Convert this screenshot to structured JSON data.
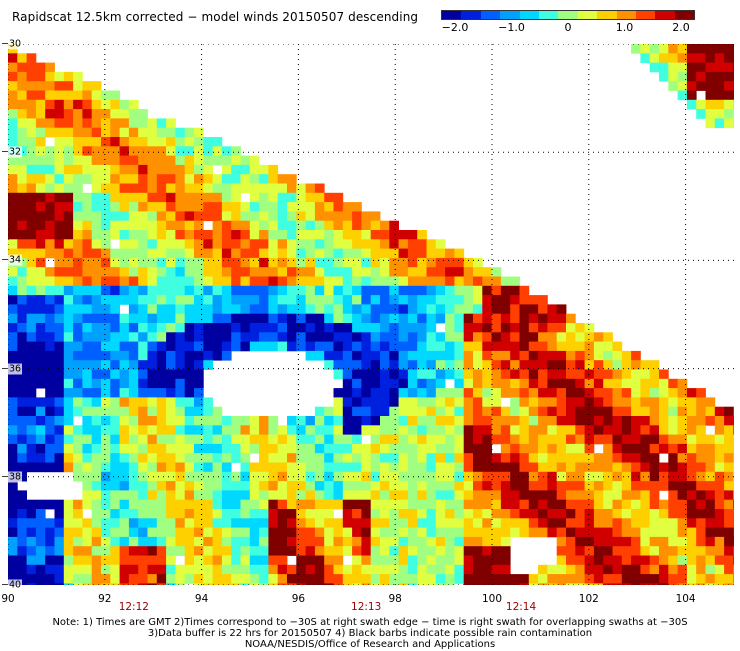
{
  "title": "Rapidscat 12.5km corrected − model winds 20150507 descending",
  "colorbar": {
    "tick_labels": [
      "−2.0",
      "−1.0",
      "0",
      "1.0",
      "2.0"
    ],
    "tick_values": [
      -2.0,
      -1.0,
      0,
      1.0,
      2.0
    ],
    "colors": [
      "#0000a0",
      "#0020e0",
      "#0060ff",
      "#00a0ff",
      "#00d8ff",
      "#40ffe0",
      "#a0ff80",
      "#e0ff40",
      "#ffd000",
      "#ff9000",
      "#ff4000",
      "#d00000",
      "#800000"
    ]
  },
  "map": {
    "lon_range": [
      90,
      105
    ],
    "lat_range": [
      -30,
      -40
    ],
    "lon_labels": [
      "90",
      "92",
      "94",
      "96",
      "98",
      "100",
      "102",
      "104"
    ],
    "lon_values": [
      90,
      92,
      94,
      96,
      98,
      100,
      102,
      104
    ],
    "lat_labels": [
      "−30",
      "−32",
      "−34",
      "−36",
      "−38",
      "−40"
    ],
    "lat_values": [
      -30,
      -32,
      -34,
      -36,
      -38,
      -40
    ],
    "time_labels": [
      {
        "text": "12:12",
        "lon": 92.6
      },
      {
        "text": "12:13",
        "lon": 97.4
      },
      {
        "text": "12:14",
        "lon": 100.6
      }
    ],
    "gridline_style": "dotted"
  },
  "notes": [
    "Note: 1) Times are GMT 2)Times correspond to −30S at right swath edge − time is right swath for overlapping swaths at −30S",
    "3)Data buffer is 22 hrs for 20150507 4) Black barbs indicate possible rain contamination",
    "NOAA/NESDIS/Office of Research and Applications"
  ]
}
